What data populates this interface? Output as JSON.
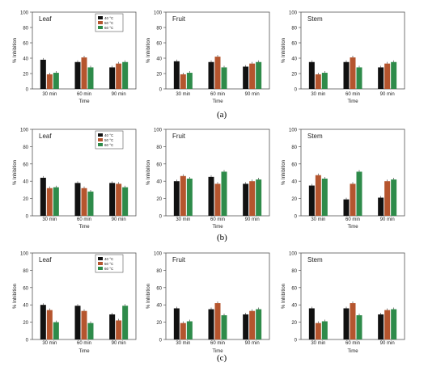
{
  "colors": {
    "s40": "#111111",
    "s50": "#b5552e",
    "s60": "#2e8b4a"
  },
  "captions": [
    "(a)",
    "(b)",
    "(c)"
  ],
  "chart_data": [
    {
      "type": "bar",
      "row": 0,
      "title": "Leaf",
      "ylabel": "% Inhibition",
      "xlabel": "Time",
      "ylim": [
        0,
        100
      ],
      "yticks": [
        0,
        20,
        40,
        60,
        80,
        100
      ],
      "categories": [
        "30 min",
        "60 min",
        "90 min"
      ],
      "legend": [
        "40 °C",
        "50 °C",
        "60 °C"
      ],
      "series": [
        {
          "name": "40 °C",
          "values": [
            38,
            35,
            28
          ]
        },
        {
          "name": "50 °C",
          "values": [
            19,
            41,
            33
          ]
        },
        {
          "name": "60 °C",
          "values": [
            21,
            28,
            35
          ]
        }
      ]
    },
    {
      "type": "bar",
      "row": 0,
      "title": "Fruit",
      "ylabel": "% Inhibition",
      "xlabel": "Time",
      "ylim": [
        0,
        100
      ],
      "yticks": [
        0,
        20,
        40,
        60,
        80,
        100
      ],
      "categories": [
        "30 min",
        "60 min",
        "90 min"
      ],
      "legend": [],
      "series": [
        {
          "values": [
            36,
            35,
            29
          ]
        },
        {
          "values": [
            19,
            42,
            33
          ]
        },
        {
          "values": [
            21,
            28,
            35
          ]
        }
      ]
    },
    {
      "type": "bar",
      "row": 0,
      "title": "Stem",
      "ylabel": "% Inhibition",
      "xlabel": "Time",
      "ylim": [
        0,
        100
      ],
      "yticks": [
        0,
        20,
        40,
        60,
        80,
        100
      ],
      "categories": [
        "30 min",
        "60 min",
        "90 min"
      ],
      "legend": [],
      "series": [
        {
          "values": [
            35,
            35,
            28
          ]
        },
        {
          "values": [
            19,
            41,
            33
          ]
        },
        {
          "values": [
            21,
            28,
            35
          ]
        }
      ]
    },
    {
      "type": "bar",
      "row": 1,
      "title": "Leaf",
      "ylabel": "% Inhibition",
      "xlabel": "Time",
      "ylim": [
        0,
        100
      ],
      "yticks": [
        0,
        20,
        40,
        60,
        80,
        100
      ],
      "categories": [
        "30 min",
        "60 min",
        "90 min"
      ],
      "legend": [
        "40 °C",
        "50 °C",
        "60 °C"
      ],
      "series": [
        {
          "name": "40 °C",
          "values": [
            44,
            38,
            38
          ]
        },
        {
          "name": "50 °C",
          "values": [
            32,
            32,
            37
          ]
        },
        {
          "name": "60 °C",
          "values": [
            33,
            28,
            33
          ]
        }
      ]
    },
    {
      "type": "bar",
      "row": 1,
      "title": "Fruit",
      "ylabel": "% Inhibition",
      "xlabel": "Time",
      "ylim": [
        0,
        100
      ],
      "yticks": [
        0,
        20,
        40,
        60,
        80,
        100
      ],
      "categories": [
        "30 min",
        "60 min",
        "90 min"
      ],
      "legend": [],
      "series": [
        {
          "values": [
            40,
            45,
            37
          ]
        },
        {
          "values": [
            46,
            37,
            40
          ]
        },
        {
          "values": [
            43,
            51,
            42
          ]
        }
      ]
    },
    {
      "type": "bar",
      "row": 1,
      "title": "Stem",
      "ylabel": "% Inhibition",
      "xlabel": "Time",
      "ylim": [
        0,
        100
      ],
      "yticks": [
        0,
        20,
        40,
        60,
        80,
        100
      ],
      "categories": [
        "30 min",
        "60 min",
        "90 min"
      ],
      "legend": [],
      "series": [
        {
          "values": [
            35,
            19,
            21
          ]
        },
        {
          "values": [
            47,
            37,
            40
          ]
        },
        {
          "values": [
            43,
            51,
            42
          ]
        }
      ]
    },
    {
      "type": "bar",
      "row": 2,
      "title": "Leaf",
      "ylabel": "% Inhibition",
      "xlabel": "Time",
      "ylim": [
        0,
        100
      ],
      "yticks": [
        0,
        20,
        40,
        60,
        80,
        100
      ],
      "categories": [
        "30 min",
        "60 min",
        "90 min"
      ],
      "legend": [
        "40 °C",
        "50 °C",
        "60 °C"
      ],
      "series": [
        {
          "name": "40 °C",
          "values": [
            40,
            39,
            29
          ]
        },
        {
          "name": "50 °C",
          "values": [
            34,
            33,
            22
          ]
        },
        {
          "name": "60 °C",
          "values": [
            20,
            19,
            39
          ]
        }
      ]
    },
    {
      "type": "bar",
      "row": 2,
      "title": "Fruit",
      "ylabel": "% Inhibition",
      "xlabel": "Time",
      "ylim": [
        0,
        100
      ],
      "yticks": [
        0,
        20,
        40,
        60,
        80,
        100
      ],
      "categories": [
        "30 min",
        "60 min",
        "90 min"
      ],
      "legend": [],
      "series": [
        {
          "values": [
            36,
            35,
            29
          ]
        },
        {
          "values": [
            19,
            42,
            33
          ]
        },
        {
          "values": [
            21,
            28,
            35
          ]
        }
      ]
    },
    {
      "type": "bar",
      "row": 2,
      "title": "Stem",
      "ylabel": "% Inhibition",
      "xlabel": "Time",
      "ylim": [
        0,
        100
      ],
      "yticks": [
        0,
        20,
        40,
        60,
        80,
        100
      ],
      "categories": [
        "30 min",
        "60 min",
        "90 min"
      ],
      "legend": [],
      "series": [
        {
          "values": [
            36,
            36,
            29
          ]
        },
        {
          "values": [
            19,
            42,
            34
          ]
        },
        {
          "values": [
            21,
            28,
            35
          ]
        }
      ]
    }
  ]
}
